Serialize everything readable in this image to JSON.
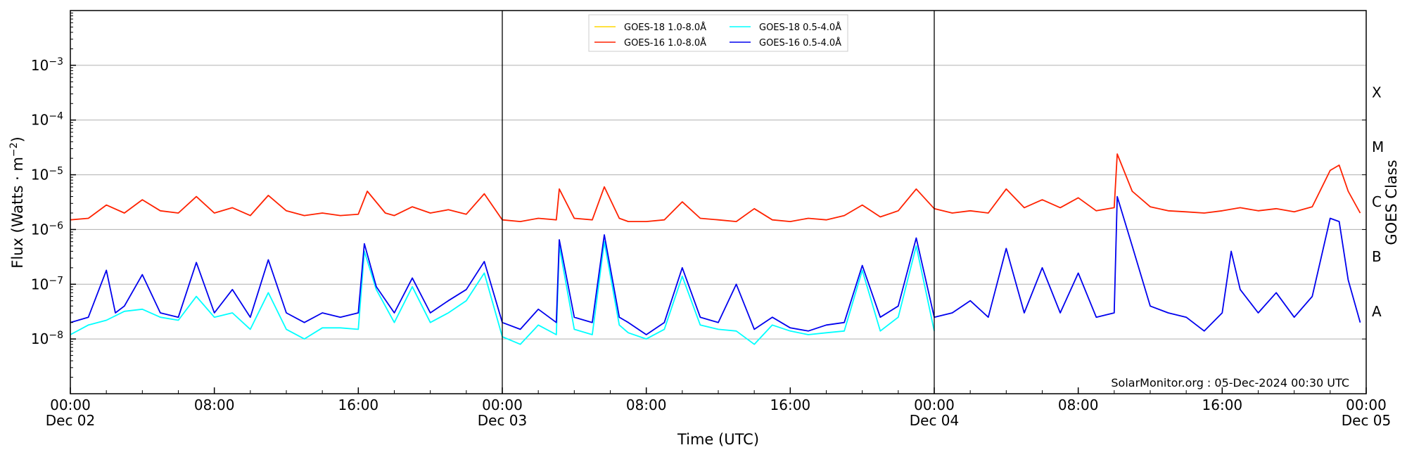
{
  "chart_data": {
    "type": "line",
    "xlabel": "Time (UTC)",
    "ylabel_text": "Flux (Watts · m",
    "ylabel_sup": "−2",
    "ylabel_close": ")",
    "right_axis_label": "GOES Class",
    "credit": "SolarMonitor.org : 05-Dec-2024 00:30 UTC",
    "yscale": "log",
    "ylim": [
      1e-09,
      0.01
    ],
    "xlim": [
      "2024-12-02T00:00",
      "2024-12-05T00:00"
    ],
    "grid": "horizontal",
    "legend_position": "top-center",
    "y_ticks": [
      {
        "value": 1e-08,
        "base": "10",
        "exp": "−8"
      },
      {
        "value": 1e-07,
        "base": "10",
        "exp": "−7"
      },
      {
        "value": 1e-06,
        "base": "10",
        "exp": "−6"
      },
      {
        "value": 1e-05,
        "base": "10",
        "exp": "−5"
      },
      {
        "value": 0.0001,
        "base": "10",
        "exp": "−4"
      },
      {
        "value": 0.001,
        "base": "10",
        "exp": "−3"
      }
    ],
    "class_labels": [
      {
        "label": "A",
        "value": 1e-08
      },
      {
        "label": "B",
        "value": 1e-07
      },
      {
        "label": "C",
        "value": 1e-06
      },
      {
        "label": "M",
        "value": 1e-05
      },
      {
        "label": "X",
        "value": 0.0001
      }
    ],
    "x_ticks": [
      {
        "time": "2024-12-02T00:00",
        "line1": "00:00",
        "line2": "Dec 02"
      },
      {
        "time": "2024-12-02T08:00",
        "line1": "08:00",
        "line2": ""
      },
      {
        "time": "2024-12-02T16:00",
        "line1": "16:00",
        "line2": ""
      },
      {
        "time": "2024-12-03T00:00",
        "line1": "00:00",
        "line2": "Dec 03"
      },
      {
        "time": "2024-12-03T08:00",
        "line1": "08:00",
        "line2": ""
      },
      {
        "time": "2024-12-03T16:00",
        "line1": "16:00",
        "line2": ""
      },
      {
        "time": "2024-12-04T00:00",
        "line1": "00:00",
        "line2": "Dec 04"
      },
      {
        "time": "2024-12-04T08:00",
        "line1": "08:00",
        "line2": ""
      },
      {
        "time": "2024-12-04T16:00",
        "line1": "16:00",
        "line2": ""
      },
      {
        "time": "2024-12-05T00:00",
        "line1": "00:00",
        "line2": "Dec 05"
      }
    ],
    "day_separators": [
      "2024-12-03T00:00",
      "2024-12-04T00:00"
    ],
    "series": [
      {
        "name": "GOES-18 1.0-8.0Å",
        "color": "#ffd700",
        "points": []
      },
      {
        "name": "GOES-18 0.5-4.0Å",
        "color": "#00ffff",
        "points": [
          [
            "2024-12-02T00:00",
            1.2e-08
          ],
          [
            "2024-12-02T01:00",
            1.8e-08
          ],
          [
            "2024-12-02T02:00",
            2.2e-08
          ],
          [
            "2024-12-02T03:00",
            3.2e-08
          ],
          [
            "2024-12-02T04:00",
            3.5e-08
          ],
          [
            "2024-12-02T05:00",
            2.5e-08
          ],
          [
            "2024-12-02T06:00",
            2.2e-08
          ],
          [
            "2024-12-02T07:00",
            6e-08
          ],
          [
            "2024-12-02T08:00",
            2.5e-08
          ],
          [
            "2024-12-02T09:00",
            3e-08
          ],
          [
            "2024-12-02T10:00",
            1.5e-08
          ],
          [
            "2024-12-02T11:00",
            7e-08
          ],
          [
            "2024-12-02T12:00",
            1.5e-08
          ],
          [
            "2024-12-02T13:00",
            1e-08
          ],
          [
            "2024-12-02T14:00",
            1.6e-08
          ],
          [
            "2024-12-02T15:00",
            1.6e-08
          ],
          [
            "2024-12-02T16:00",
            1.5e-08
          ],
          [
            "2024-12-02T16:20",
            4e-07
          ],
          [
            "2024-12-02T17:00",
            8e-08
          ],
          [
            "2024-12-02T18:00",
            2e-08
          ],
          [
            "2024-12-02T19:00",
            9e-08
          ],
          [
            "2024-12-02T20:00",
            2e-08
          ],
          [
            "2024-12-02T21:00",
            3e-08
          ],
          [
            "2024-12-02T22:00",
            5e-08
          ],
          [
            "2024-12-02T23:00",
            1.6e-07
          ],
          [
            "2024-12-03T00:00",
            1.1e-08
          ],
          [
            "2024-12-03T01:00",
            8e-09
          ],
          [
            "2024-12-03T02:00",
            1.8e-08
          ],
          [
            "2024-12-03T03:00",
            1.2e-08
          ],
          [
            "2024-12-03T03:10",
            5e-07
          ],
          [
            "2024-12-03T04:00",
            1.5e-08
          ],
          [
            "2024-12-03T05:00",
            1.2e-08
          ],
          [
            "2024-12-03T05:40",
            6e-07
          ],
          [
            "2024-12-03T06:30",
            1.8e-08
          ],
          [
            "2024-12-03T07:00",
            1.3e-08
          ],
          [
            "2024-12-03T08:00",
            1e-08
          ],
          [
            "2024-12-03T09:00",
            1.5e-08
          ],
          [
            "2024-12-03T10:00",
            1.4e-07
          ],
          [
            "2024-12-03T11:00",
            1.8e-08
          ],
          [
            "2024-12-03T12:00",
            1.5e-08
          ],
          [
            "2024-12-03T13:00",
            1.4e-08
          ],
          [
            "2024-12-03T14:00",
            8e-09
          ],
          [
            "2024-12-03T15:00",
            1.8e-08
          ],
          [
            "2024-12-03T16:00",
            1.4e-08
          ],
          [
            "2024-12-03T17:00",
            1.2e-08
          ],
          [
            "2024-12-03T18:00",
            1.3e-08
          ],
          [
            "2024-12-03T19:00",
            1.4e-08
          ],
          [
            "2024-12-03T20:00",
            1.8e-07
          ],
          [
            "2024-12-03T21:00",
            1.4e-08
          ],
          [
            "2024-12-03T22:00",
            2.5e-08
          ],
          [
            "2024-12-03T23:00",
            5e-07
          ],
          [
            "2024-12-04T00:00",
            1.4e-08
          ]
        ]
      },
      {
        "name": "GOES-16 1.0-8.0Å",
        "color": "#ff2200",
        "points": [
          [
            "2024-12-02T00:00",
            1.5e-06
          ],
          [
            "2024-12-02T01:00",
            1.6e-06
          ],
          [
            "2024-12-02T02:00",
            2.8e-06
          ],
          [
            "2024-12-02T03:00",
            2e-06
          ],
          [
            "2024-12-02T04:00",
            3.5e-06
          ],
          [
            "2024-12-02T05:00",
            2.2e-06
          ],
          [
            "2024-12-02T06:00",
            2e-06
          ],
          [
            "2024-12-02T07:00",
            4e-06
          ],
          [
            "2024-12-02T08:00",
            2e-06
          ],
          [
            "2024-12-02T09:00",
            2.5e-06
          ],
          [
            "2024-12-02T10:00",
            1.8e-06
          ],
          [
            "2024-12-02T11:00",
            4.2e-06
          ],
          [
            "2024-12-02T12:00",
            2.2e-06
          ],
          [
            "2024-12-02T13:00",
            1.8e-06
          ],
          [
            "2024-12-02T14:00",
            2e-06
          ],
          [
            "2024-12-02T15:00",
            1.8e-06
          ],
          [
            "2024-12-02T16:00",
            1.9e-06
          ],
          [
            "2024-12-02T16:30",
            5e-06
          ],
          [
            "2024-12-02T17:30",
            2e-06
          ],
          [
            "2024-12-02T18:00",
            1.8e-06
          ],
          [
            "2024-12-02T19:00",
            2.6e-06
          ],
          [
            "2024-12-02T20:00",
            2e-06
          ],
          [
            "2024-12-02T21:00",
            2.3e-06
          ],
          [
            "2024-12-02T22:00",
            1.9e-06
          ],
          [
            "2024-12-02T23:00",
            4.5e-06
          ],
          [
            "2024-12-03T00:00",
            1.5e-06
          ],
          [
            "2024-12-03T01:00",
            1.4e-06
          ],
          [
            "2024-12-03T02:00",
            1.6e-06
          ],
          [
            "2024-12-03T03:00",
            1.5e-06
          ],
          [
            "2024-12-03T03:10",
            5.5e-06
          ],
          [
            "2024-12-03T04:00",
            1.6e-06
          ],
          [
            "2024-12-03T05:00",
            1.5e-06
          ],
          [
            "2024-12-03T05:40",
            6e-06
          ],
          [
            "2024-12-03T06:30",
            1.6e-06
          ],
          [
            "2024-12-03T07:00",
            1.4e-06
          ],
          [
            "2024-12-03T08:00",
            1.4e-06
          ],
          [
            "2024-12-03T09:00",
            1.5e-06
          ],
          [
            "2024-12-03T10:00",
            3.2e-06
          ],
          [
            "2024-12-03T11:00",
            1.6e-06
          ],
          [
            "2024-12-03T12:00",
            1.5e-06
          ],
          [
            "2024-12-03T13:00",
            1.4e-06
          ],
          [
            "2024-12-03T14:00",
            2.4e-06
          ],
          [
            "2024-12-03T15:00",
            1.5e-06
          ],
          [
            "2024-12-03T16:00",
            1.4e-06
          ],
          [
            "2024-12-03T17:00",
            1.6e-06
          ],
          [
            "2024-12-03T18:00",
            1.5e-06
          ],
          [
            "2024-12-03T19:00",
            1.8e-06
          ],
          [
            "2024-12-03T20:00",
            2.8e-06
          ],
          [
            "2024-12-03T21:00",
            1.7e-06
          ],
          [
            "2024-12-03T22:00",
            2.2e-06
          ],
          [
            "2024-12-03T23:00",
            5.5e-06
          ],
          [
            "2024-12-04T00:00",
            2.4e-06
          ],
          [
            "2024-12-04T01:00",
            2e-06
          ],
          [
            "2024-12-04T02:00",
            2.2e-06
          ],
          [
            "2024-12-04T03:00",
            2e-06
          ],
          [
            "2024-12-04T04:00",
            5.5e-06
          ],
          [
            "2024-12-04T05:00",
            2.5e-06
          ],
          [
            "2024-12-04T06:00",
            3.5e-06
          ],
          [
            "2024-12-04T07:00",
            2.5e-06
          ],
          [
            "2024-12-04T08:00",
            3.8e-06
          ],
          [
            "2024-12-04T09:00",
            2.2e-06
          ],
          [
            "2024-12-04T10:00",
            2.5e-06
          ],
          [
            "2024-12-04T10:10",
            2.4e-05
          ],
          [
            "2024-12-04T11:00",
            5e-06
          ],
          [
            "2024-12-04T12:00",
            2.6e-06
          ],
          [
            "2024-12-04T13:00",
            2.2e-06
          ],
          [
            "2024-12-04T14:00",
            2.1e-06
          ],
          [
            "2024-12-04T15:00",
            2e-06
          ],
          [
            "2024-12-04T16:00",
            2.2e-06
          ],
          [
            "2024-12-04T17:00",
            2.5e-06
          ],
          [
            "2024-12-04T18:00",
            2.2e-06
          ],
          [
            "2024-12-04T19:00",
            2.4e-06
          ],
          [
            "2024-12-04T20:00",
            2.1e-06
          ],
          [
            "2024-12-04T21:00",
            2.6e-06
          ],
          [
            "2024-12-04T22:00",
            1.2e-05
          ],
          [
            "2024-12-04T22:30",
            1.5e-05
          ],
          [
            "2024-12-04T23:00",
            5e-06
          ],
          [
            "2024-12-04T23:40",
            2e-06
          ]
        ]
      },
      {
        "name": "GOES-16 0.5-4.0Å",
        "color": "#0000ee",
        "points": [
          [
            "2024-12-02T00:00",
            2e-08
          ],
          [
            "2024-12-02T01:00",
            2.5e-08
          ],
          [
            "2024-12-02T02:00",
            1.8e-07
          ],
          [
            "2024-12-02T02:30",
            3e-08
          ],
          [
            "2024-12-02T03:00",
            4e-08
          ],
          [
            "2024-12-02T04:00",
            1.5e-07
          ],
          [
            "2024-12-02T05:00",
            3e-08
          ],
          [
            "2024-12-02T06:00",
            2.5e-08
          ],
          [
            "2024-12-02T07:00",
            2.5e-07
          ],
          [
            "2024-12-02T08:00",
            3e-08
          ],
          [
            "2024-12-02T09:00",
            8e-08
          ],
          [
            "2024-12-02T10:00",
            2.5e-08
          ],
          [
            "2024-12-02T11:00",
            2.8e-07
          ],
          [
            "2024-12-02T12:00",
            3e-08
          ],
          [
            "2024-12-02T13:00",
            2e-08
          ],
          [
            "2024-12-02T14:00",
            3e-08
          ],
          [
            "2024-12-02T15:00",
            2.5e-08
          ],
          [
            "2024-12-02T16:00",
            3e-08
          ],
          [
            "2024-12-02T16:20",
            5.5e-07
          ],
          [
            "2024-12-02T17:00",
            9e-08
          ],
          [
            "2024-12-02T18:00",
            3e-08
          ],
          [
            "2024-12-02T19:00",
            1.3e-07
          ],
          [
            "2024-12-02T20:00",
            3e-08
          ],
          [
            "2024-12-02T21:00",
            5e-08
          ],
          [
            "2024-12-02T22:00",
            8e-08
          ],
          [
            "2024-12-02T23:00",
            2.6e-07
          ],
          [
            "2024-12-03T00:00",
            2e-08
          ],
          [
            "2024-12-03T01:00",
            1.5e-08
          ],
          [
            "2024-12-03T02:00",
            3.5e-08
          ],
          [
            "2024-12-03T03:00",
            2e-08
          ],
          [
            "2024-12-03T03:10",
            6.5e-07
          ],
          [
            "2024-12-03T04:00",
            2.5e-08
          ],
          [
            "2024-12-03T05:00",
            2e-08
          ],
          [
            "2024-12-03T05:40",
            8e-07
          ],
          [
            "2024-12-03T06:30",
            2.5e-08
          ],
          [
            "2024-12-03T07:00",
            2e-08
          ],
          [
            "2024-12-03T08:00",
            1.2e-08
          ],
          [
            "2024-12-03T09:00",
            2e-08
          ],
          [
            "2024-12-03T10:00",
            2e-07
          ],
          [
            "2024-12-03T11:00",
            2.5e-08
          ],
          [
            "2024-12-03T12:00",
            2e-08
          ],
          [
            "2024-12-03T13:00",
            1e-07
          ],
          [
            "2024-12-03T14:00",
            1.5e-08
          ],
          [
            "2024-12-03T15:00",
            2.5e-08
          ],
          [
            "2024-12-03T16:00",
            1.6e-08
          ],
          [
            "2024-12-03T17:00",
            1.4e-08
          ],
          [
            "2024-12-03T18:00",
            1.8e-08
          ],
          [
            "2024-12-03T19:00",
            2e-08
          ],
          [
            "2024-12-03T20:00",
            2.2e-07
          ],
          [
            "2024-12-03T21:00",
            2.5e-08
          ],
          [
            "2024-12-03T22:00",
            4e-08
          ],
          [
            "2024-12-03T23:00",
            7e-07
          ],
          [
            "2024-12-04T00:00",
            2.5e-08
          ],
          [
            "2024-12-04T01:00",
            3e-08
          ],
          [
            "2024-12-04T02:00",
            5e-08
          ],
          [
            "2024-12-04T03:00",
            2.5e-08
          ],
          [
            "2024-12-04T04:00",
            4.5e-07
          ],
          [
            "2024-12-04T05:00",
            3e-08
          ],
          [
            "2024-12-04T06:00",
            2e-07
          ],
          [
            "2024-12-04T07:00",
            3e-08
          ],
          [
            "2024-12-04T08:00",
            1.6e-07
          ],
          [
            "2024-12-04T09:00",
            2.5e-08
          ],
          [
            "2024-12-04T10:00",
            3e-08
          ],
          [
            "2024-12-04T10:10",
            4e-06
          ],
          [
            "2024-12-04T11:00",
            5e-07
          ],
          [
            "2024-12-04T12:00",
            4e-08
          ],
          [
            "2024-12-04T13:00",
            3e-08
          ],
          [
            "2024-12-04T14:00",
            2.5e-08
          ],
          [
            "2024-12-04T15:00",
            1.4e-08
          ],
          [
            "2024-12-04T16:00",
            3e-08
          ],
          [
            "2024-12-04T16:30",
            4e-07
          ],
          [
            "2024-12-04T17:00",
            8e-08
          ],
          [
            "2024-12-04T18:00",
            3e-08
          ],
          [
            "2024-12-04T19:00",
            7e-08
          ],
          [
            "2024-12-04T20:00",
            2.5e-08
          ],
          [
            "2024-12-04T21:00",
            6e-08
          ],
          [
            "2024-12-04T22:00",
            1.6e-06
          ],
          [
            "2024-12-04T22:30",
            1.4e-06
          ],
          [
            "2024-12-04T23:00",
            1.2e-07
          ],
          [
            "2024-12-04T23:40",
            2e-08
          ]
        ]
      }
    ]
  }
}
